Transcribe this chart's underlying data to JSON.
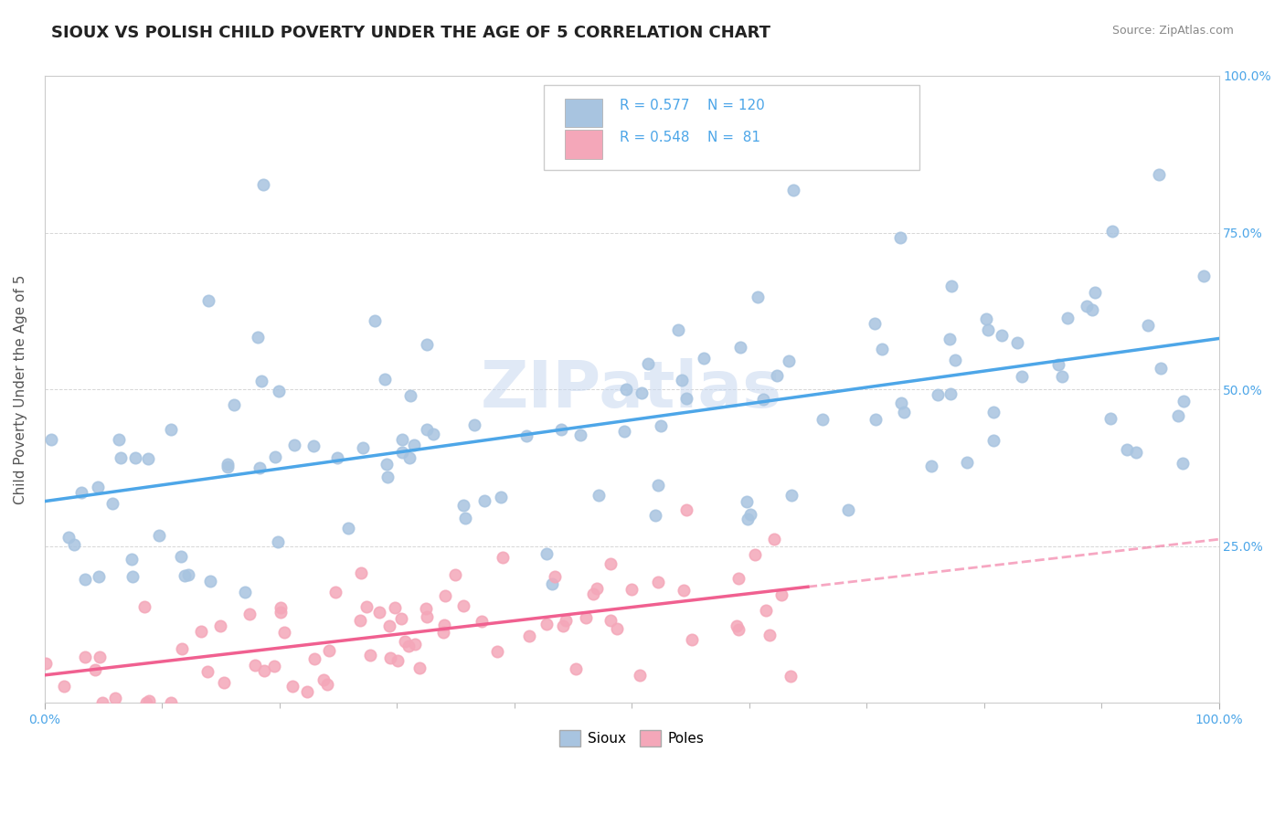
{
  "title": "SIOUX VS POLISH CHILD POVERTY UNDER THE AGE OF 5 CORRELATION CHART",
  "source": "Source: ZipAtlas.com",
  "ylabel": "Child Poverty Under the Age of 5",
  "xlim": [
    0.0,
    1.0
  ],
  "ylim": [
    0.0,
    1.0
  ],
  "ytick_labels": [
    "25.0%",
    "50.0%",
    "75.0%",
    "100.0%"
  ],
  "ytick_positions": [
    0.25,
    0.5,
    0.75,
    1.0
  ],
  "sioux_color": "#a8c4e0",
  "poles_color": "#f4a7b9",
  "sioux_line_color": "#4da6e8",
  "poles_line_color": "#f06090",
  "watermark": "ZIPatlas",
  "watermark_color": "#c8d8f0",
  "R_sioux": 0.577,
  "N_sioux": 120,
  "R_poles": 0.548,
  "N_poles": 81,
  "title_fontsize": 13,
  "axis_label_fontsize": 11,
  "tick_fontsize": 10,
  "legend_fontsize": 11,
  "sioux_seed": 42,
  "poles_seed": 7,
  "background_color": "#ffffff",
  "grid_color": "#cccccc",
  "stat_text_color": "#4da6e8",
  "tick_color": "#4da6e8"
}
